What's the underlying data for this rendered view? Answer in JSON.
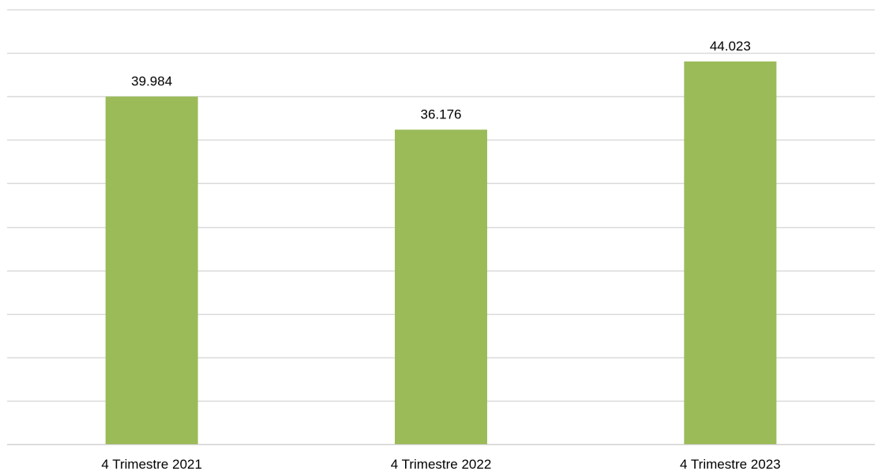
{
  "chart_data": {
    "type": "bar",
    "categories": [
      "4 Trimestre 2021",
      "4 Trimestre 2022",
      "4 Trimestre 2023"
    ],
    "values": [
      39984,
      36176,
      44023
    ],
    "data_labels": [
      "39.984",
      "36.176",
      "44.023"
    ],
    "title": "",
    "xlabel": "",
    "ylabel": "",
    "ylim": [
      0,
      50000
    ],
    "y_tick_step": 5000,
    "grid": true,
    "legend": "none",
    "bar_color": "#9bbb59",
    "grid_color": "#d9d9d9"
  }
}
